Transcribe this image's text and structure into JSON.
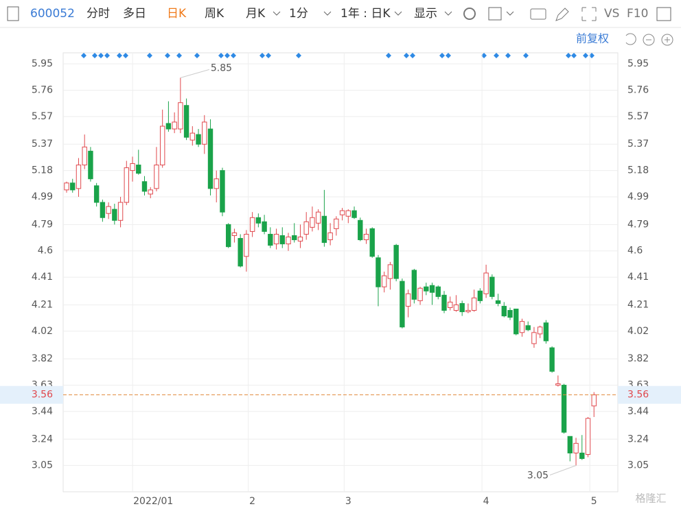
{
  "toolbar": {
    "code": "600052",
    "tabs": [
      "分时",
      "多日",
      "日K",
      "周K"
    ],
    "active_tab": 2,
    "period": "月K",
    "minute": "1分",
    "range": "1年 : 日K",
    "display": "显示",
    "vs": "VS",
    "f10": "F10"
  },
  "adjust": "前复权",
  "watermark": "格隆汇",
  "chart_data": {
    "type": "candlestick",
    "categories": [
      null,
      null,
      null,
      null,
      null,
      null,
      null,
      null,
      null,
      null,
      null,
      null,
      null,
      null,
      "2022/01",
      null,
      null,
      null,
      null,
      null,
      null,
      null,
      null,
      null,
      null,
      null,
      null,
      null,
      null,
      null,
      null,
      "2",
      null,
      null,
      null,
      null,
      null,
      null,
      null,
      null,
      null,
      null,
      null,
      null,
      null,
      null,
      null,
      "3",
      null,
      null,
      null,
      null,
      null,
      null,
      null,
      null,
      null,
      null,
      null,
      null,
      null,
      null,
      null,
      null,
      null,
      null,
      null,
      null,
      null,
      null,
      "4",
      null,
      null,
      null,
      null,
      null,
      null,
      null,
      null,
      null,
      null,
      null,
      null,
      null,
      null,
      null,
      null,
      null,
      "5"
    ],
    "ohlc": [
      [
        5.04,
        5.1,
        5.02,
        5.09
      ],
      [
        5.09,
        5.12,
        5.02,
        5.04
      ],
      [
        5.05,
        5.27,
        4.99,
        5.22
      ],
      [
        5.22,
        5.44,
        5.19,
        5.35
      ],
      [
        5.32,
        5.35,
        5.1,
        5.12
      ],
      [
        5.07,
        5.09,
        4.92,
        4.95
      ],
      [
        4.95,
        4.97,
        4.81,
        4.84
      ],
      [
        4.87,
        4.95,
        4.83,
        4.92
      ],
      [
        4.9,
        4.94,
        4.79,
        4.82
      ],
      [
        4.82,
        4.99,
        4.77,
        4.95
      ],
      [
        4.95,
        5.25,
        4.93,
        5.2
      ],
      [
        5.18,
        5.28,
        5.1,
        5.23
      ],
      [
        5.22,
        5.33,
        5.15,
        5.16
      ],
      [
        5.1,
        5.14,
        5.0,
        5.03
      ],
      [
        5.01,
        5.06,
        4.98,
        5.04
      ],
      [
        5.05,
        5.35,
        5.03,
        5.22
      ],
      [
        5.22,
        5.62,
        5.2,
        5.5
      ],
      [
        5.52,
        5.68,
        5.46,
        5.48
      ],
      [
        5.48,
        5.6,
        5.45,
        5.53
      ],
      [
        5.48,
        5.85,
        5.45,
        5.67
      ],
      [
        5.65,
        5.7,
        5.4,
        5.42
      ],
      [
        5.4,
        5.5,
        5.36,
        5.45
      ],
      [
        5.44,
        5.48,
        5.35,
        5.37
      ],
      [
        5.37,
        5.58,
        5.3,
        5.53
      ],
      [
        5.48,
        5.55,
        5.0,
        5.05
      ],
      [
        5.05,
        5.18,
        4.95,
        5.12
      ],
      [
        5.18,
        5.2,
        4.85,
        4.88
      ],
      [
        4.79,
        4.8,
        4.62,
        4.63
      ],
      [
        4.71,
        4.76,
        4.66,
        4.73
      ],
      [
        4.69,
        4.72,
        4.48,
        4.49
      ],
      [
        4.56,
        4.75,
        4.45,
        4.72
      ],
      [
        4.74,
        4.88,
        4.7,
        4.84
      ],
      [
        4.84,
        4.87,
        4.77,
        4.8
      ],
      [
        4.81,
        4.86,
        4.72,
        4.74
      ],
      [
        4.72,
        4.77,
        4.62,
        4.64
      ],
      [
        4.65,
        4.76,
        4.61,
        4.72
      ],
      [
        4.71,
        4.77,
        4.62,
        4.65
      ],
      [
        4.65,
        4.73,
        4.6,
        4.7
      ],
      [
        4.71,
        4.8,
        4.66,
        4.68
      ],
      [
        4.67,
        4.79,
        4.62,
        4.7
      ],
      [
        4.72,
        4.88,
        4.68,
        4.81
      ],
      [
        4.77,
        4.92,
        4.74,
        4.84
      ],
      [
        4.8,
        4.9,
        4.75,
        4.88
      ],
      [
        4.85,
        5.04,
        4.63,
        4.66
      ],
      [
        4.68,
        4.8,
        4.64,
        4.73
      ],
      [
        4.76,
        4.85,
        4.71,
        4.83
      ],
      [
        4.86,
        4.91,
        4.82,
        4.89
      ],
      [
        4.85,
        4.9,
        4.8,
        4.89
      ],
      [
        4.89,
        4.92,
        4.83,
        4.84
      ],
      [
        4.82,
        4.84,
        4.67,
        4.68
      ],
      [
        4.68,
        4.76,
        4.65,
        4.72
      ],
      [
        4.76,
        4.77,
        4.55,
        4.56
      ],
      [
        4.55,
        4.57,
        4.2,
        4.34
      ],
      [
        4.34,
        4.45,
        4.3,
        4.42
      ],
      [
        4.4,
        4.52,
        4.32,
        4.5
      ],
      [
        4.64,
        4.65,
        4.38,
        4.4
      ],
      [
        4.38,
        4.4,
        4.04,
        4.05
      ],
      [
        4.2,
        4.32,
        4.12,
        4.29
      ],
      [
        4.46,
        4.47,
        4.22,
        4.25
      ],
      [
        4.24,
        4.34,
        4.21,
        4.33
      ],
      [
        4.34,
        4.37,
        4.28,
        4.31
      ],
      [
        4.35,
        4.37,
        4.21,
        4.3
      ],
      [
        4.34,
        4.35,
        4.25,
        4.27
      ],
      [
        4.28,
        4.31,
        4.15,
        4.17
      ],
      [
        4.19,
        4.27,
        4.17,
        4.23
      ],
      [
        4.17,
        4.28,
        4.16,
        4.21
      ],
      [
        4.22,
        4.24,
        4.13,
        4.16
      ],
      [
        4.16,
        4.22,
        4.15,
        4.17
      ],
      [
        4.17,
        4.32,
        4.16,
        4.26
      ],
      [
        4.31,
        4.33,
        4.22,
        4.24
      ],
      [
        4.29,
        4.5,
        4.26,
        4.44
      ],
      [
        4.41,
        4.43,
        4.25,
        4.27
      ],
      [
        4.24,
        4.29,
        4.2,
        4.22
      ],
      [
        4.2,
        4.23,
        4.12,
        4.13
      ],
      [
        4.17,
        4.19,
        4.1,
        4.12
      ],
      [
        4.18,
        4.18,
        3.99,
        4.0
      ],
      [
        4.01,
        4.11,
        3.98,
        4.09
      ],
      [
        4.06,
        4.09,
        4.02,
        4.03
      ],
      [
        3.93,
        4.05,
        3.9,
        4.01
      ],
      [
        4.0,
        4.06,
        3.97,
        4.05
      ],
      [
        4.08,
        4.1,
        3.93,
        3.95
      ],
      [
        3.9,
        3.91,
        3.72,
        3.73
      ],
      [
        3.63,
        3.7,
        3.62,
        3.64
      ],
      [
        3.63,
        3.64,
        3.28,
        3.29
      ],
      [
        3.26,
        3.26,
        3.08,
        3.14
      ],
      [
        3.14,
        3.25,
        3.05,
        3.21
      ],
      [
        3.14,
        3.27,
        3.09,
        3.1
      ],
      [
        3.13,
        3.4,
        3.11,
        3.39
      ],
      [
        3.48,
        3.58,
        3.4,
        3.56
      ]
    ],
    "up_color": "#e0474c",
    "down_color": "#1aa34a",
    "ylim": [
      2.86,
      6.03
    ],
    "yticks": [
      5.95,
      5.76,
      5.57,
      5.37,
      5.18,
      4.99,
      4.79,
      4.6,
      4.41,
      4.21,
      4.02,
      3.82,
      3.63,
      3.44,
      3.24,
      3.05
    ],
    "annotations": [
      5.85,
      3.05
    ],
    "last_price": 3.56,
    "grid": true
  }
}
